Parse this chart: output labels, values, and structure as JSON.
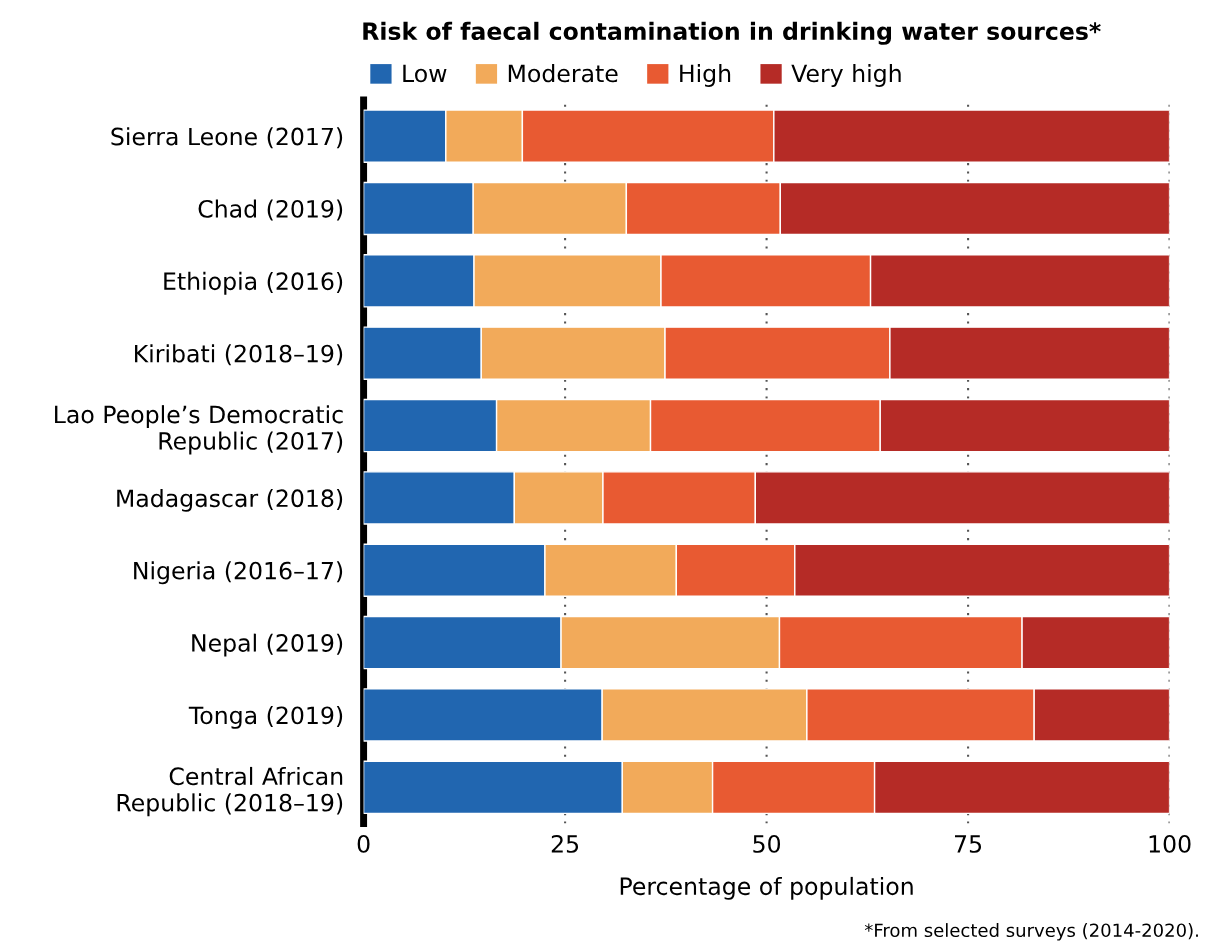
{
  "chart_data": {
    "type": "bar",
    "orientation": "horizontal",
    "stacked": true,
    "title": "Risk of faecal contamination in drinking water sources*",
    "xlabel": "Percentage of population",
    "categories": [
      "Sierra Leone (2017)",
      "Chad (2019)",
      "Ethiopia (2016)",
      "Kiribati (2018–19)",
      "Lao People’s Democratic\nRepublic (2017)",
      "Madagascar (2018)",
      "Nigeria (2016–17)",
      "Nepal (2019)",
      "Tonga (2019)",
      "Central African\nRepublic (2018–19)"
    ],
    "series": [
      {
        "name": "Low",
        "color": "#2166b0",
        "values": [
          10.2,
          13.6,
          13.7,
          14.6,
          16.5,
          18.7,
          22.5,
          24.5,
          29.6,
          32.1
        ]
      },
      {
        "name": "Moderate",
        "color": "#f2aa5a",
        "values": [
          9.5,
          19.0,
          23.2,
          22.8,
          19.1,
          11.0,
          16.3,
          27.1,
          25.4,
          11.2
        ]
      },
      {
        "name": "High",
        "color": "#e85a32",
        "values": [
          31.2,
          19.1,
          26.0,
          27.9,
          28.5,
          18.9,
          14.7,
          30.1,
          28.2,
          20.1
        ]
      },
      {
        "name": "Very high",
        "color": "#b52b26",
        "values": [
          49.1,
          48.3,
          37.1,
          34.7,
          35.9,
          51.4,
          46.5,
          18.3,
          16.8,
          36.6
        ]
      }
    ],
    "xlim": [
      0,
      100
    ],
    "xticks": [
      0,
      25,
      50,
      75,
      100
    ],
    "grid": "x",
    "legend": "top",
    "annotations": [
      "*From selected surveys (2014-2020)."
    ]
  }
}
